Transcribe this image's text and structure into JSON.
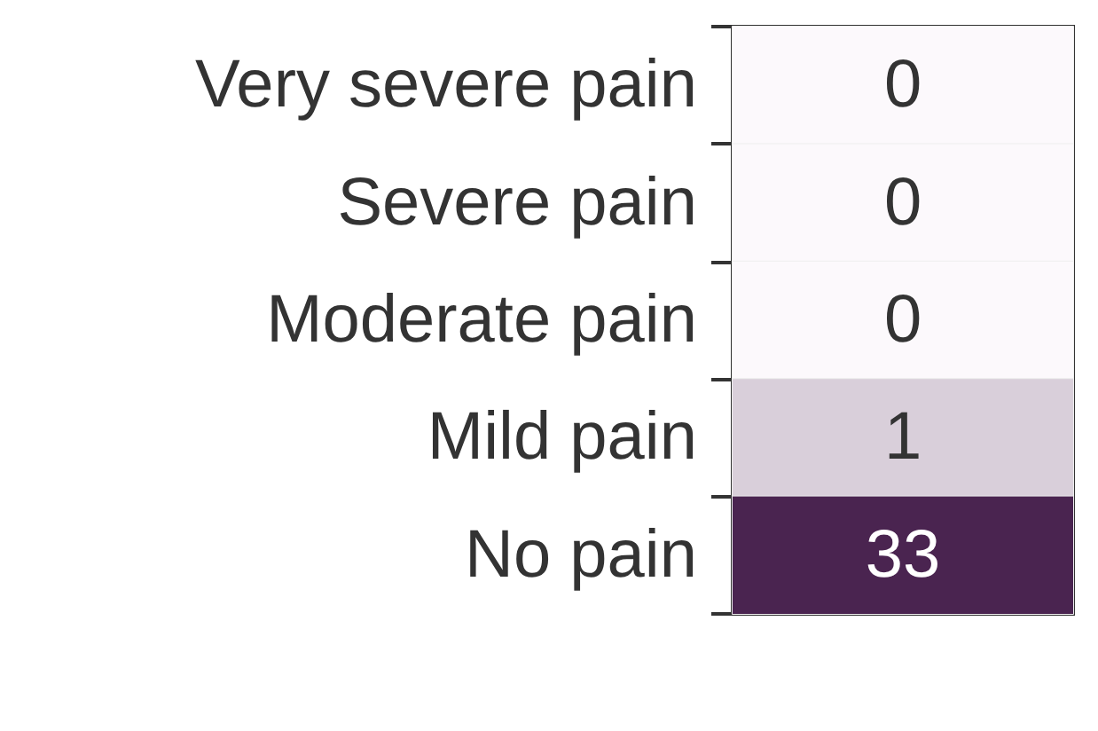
{
  "chart_data": {
    "type": "heatmap",
    "categories": [
      null
    ],
    "y_categories": [
      "Very severe pain",
      "Severe pain",
      "Moderate pain",
      "Mild pain",
      "No pain"
    ],
    "cells": [
      [
        0
      ],
      [
        0
      ],
      [
        0
      ],
      [
        1
      ],
      [
        33
      ]
    ],
    "data_labels": true
  }
}
